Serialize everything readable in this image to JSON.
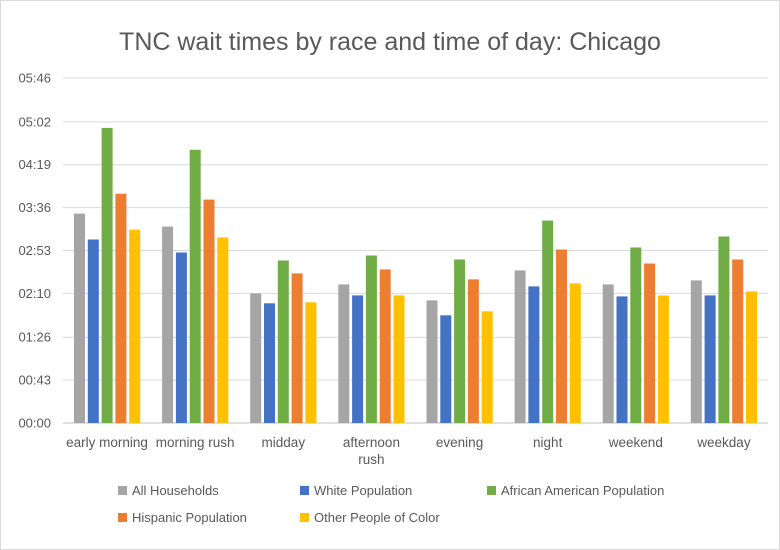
{
  "chart_data": {
    "type": "bar",
    "title": "TNC wait times by race and time of day: Chicago",
    "categories": [
      [
        "early morning"
      ],
      [
        "morning rush"
      ],
      [
        "midday"
      ],
      [
        "afternoon",
        "rush"
      ],
      [
        "evening"
      ],
      [
        "night"
      ],
      [
        "weekend"
      ],
      [
        "weekday"
      ]
    ],
    "y_ticks": [
      "00:00",
      "00:43",
      "01:26",
      "02:10",
      "02:53",
      "03:36",
      "04:19",
      "05:02",
      "05:46"
    ],
    "y_tick_seconds": [
      0,
      43,
      86,
      130,
      173,
      216,
      259,
      302,
      346
    ],
    "ylim_seconds": [
      0,
      346
    ],
    "y_unit": "seconds",
    "grid": true,
    "legend_position": "bottom",
    "series": [
      {
        "name": "All Households",
        "color": "#a5a5a5",
        "values": [
          210,
          197,
          130,
          139,
          123,
          153,
          139,
          143
        ]
      },
      {
        "name": "White Population",
        "color": "#4472c4",
        "values": [
          184,
          171,
          120,
          128,
          108,
          137,
          127,
          128
        ]
      },
      {
        "name": "African American Population",
        "color": "#70ad47",
        "values": [
          296,
          274,
          163,
          168,
          164,
          203,
          176,
          187
        ]
      },
      {
        "name": "Hispanic Population",
        "color": "#ed7d31",
        "values": [
          230,
          224,
          150,
          154,
          144,
          174,
          160,
          164
        ]
      },
      {
        "name": "Other People of Color",
        "color": "#ffc000",
        "values": [
          194,
          186,
          121,
          128,
          112,
          140,
          128,
          132
        ]
      }
    ]
  }
}
